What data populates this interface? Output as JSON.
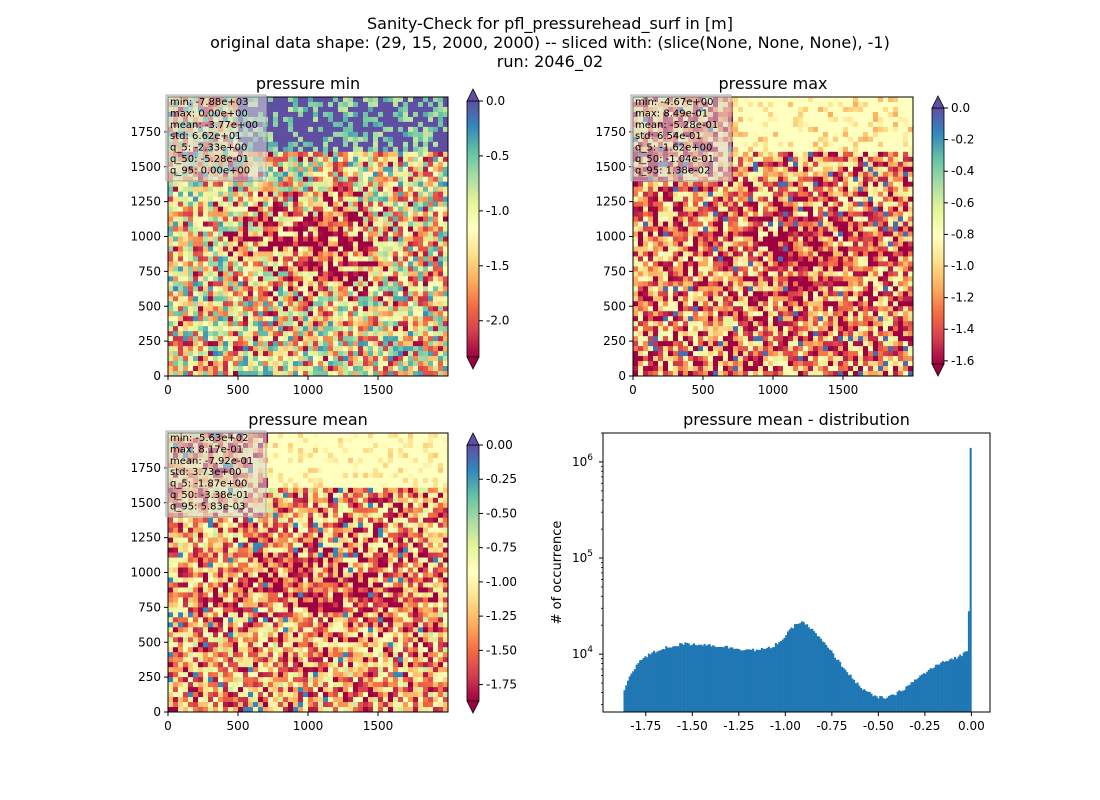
{
  "figure": {
    "title_lines": [
      "Sanity-Check for pfl_pressurehead_surf in [m]",
      "original data shape: (29, 15, 2000, 2000) -- sliced with: (slice(None, None, None), -1)",
      "run: 2046_02"
    ]
  },
  "colormap": "Spectral",
  "chart_data": [
    {
      "type": "heatmap",
      "title": "pressure min",
      "xticks": [
        0,
        500,
        1000,
        1500
      ],
      "yticks": [
        0,
        250,
        500,
        750,
        1000,
        1250,
        1500,
        1750
      ],
      "xlim": [
        0,
        2000
      ],
      "ylim": [
        0,
        2000
      ],
      "colorbar": {
        "ticks": [
          "0.0",
          "-0.5",
          "-1.0",
          "-1.5",
          "-2.0"
        ],
        "range": [
          -2.33,
          0.0
        ],
        "extend": "both"
      },
      "stats": [
        "min: -7.88e+03",
        "max: 0.00e+00",
        "mean: -3.77e+00",
        "std: 6.62e+01",
        "q_5: -2.33e+00",
        "q_50: -5.28e-01",
        "q_95: 0.00e+00"
      ]
    },
    {
      "type": "heatmap",
      "title": "pressure max",
      "xticks": [
        0,
        500,
        1000,
        1500
      ],
      "yticks": [
        0,
        250,
        500,
        750,
        1000,
        1250,
        1500,
        1750
      ],
      "xlim": [
        0,
        2000
      ],
      "ylim": [
        0,
        2000
      ],
      "colorbar": {
        "ticks": [
          "0.0",
          "-0.2",
          "-0.4",
          "-0.6",
          "-0.8",
          "-1.0",
          "-1.2",
          "-1.4",
          "-1.6"
        ],
        "range": [
          -1.62,
          0.0
        ],
        "extend": "both"
      },
      "stats": [
        "min: -4.67e+00",
        "max: 8.49e-01",
        "mean: -5.28e-01",
        "std: 6.54e-01",
        "q_5: -1.62e+00",
        "q_50: -1.04e-01",
        "q_95: 1.38e-02"
      ]
    },
    {
      "type": "heatmap",
      "title": "pressure mean",
      "xticks": [
        0,
        500,
        1000,
        1500
      ],
      "yticks": [
        0,
        250,
        500,
        750,
        1000,
        1250,
        1500,
        1750
      ],
      "xlim": [
        0,
        2000
      ],
      "ylim": [
        0,
        2000
      ],
      "colorbar": {
        "ticks": [
          "0.00",
          "-0.25",
          "-0.50",
          "-0.75",
          "-1.00",
          "-1.25",
          "-1.50",
          "-1.75"
        ],
        "range": [
          -1.87,
          0.0
        ],
        "extend": "both"
      },
      "stats": [
        "min: -5.63e+02",
        "max: 8.17e-01",
        "mean: -7.92e-01",
        "std: 3.73e+00",
        "q_5: -1.87e+00",
        "q_50: -3.38e-01",
        "q_95: 5.83e-03"
      ]
    },
    {
      "type": "bar",
      "title": "pressure mean - distribution",
      "ylabel": "# of occurrence",
      "yscale": "log",
      "ylim": [
        2500,
        2000000
      ],
      "xlim": [
        -1.98,
        0.1
      ],
      "xticks": [
        "-1.75",
        "-1.50",
        "-1.25",
        "-1.00",
        "-0.75",
        "-0.50",
        "-0.25",
        "0.00"
      ],
      "xtick_values": [
        -1.75,
        -1.5,
        -1.25,
        -1.0,
        -0.75,
        -0.5,
        -0.25,
        0.0
      ],
      "ytick_values": [
        10000,
        100000,
        1000000
      ],
      "bins": [
        -1.87,
        0.0
      ],
      "color": "#1f77b4",
      "profile": [
        [
          -1.87,
          3900
        ],
        [
          -1.85,
          5200
        ],
        [
          -1.82,
          6800
        ],
        [
          -1.78,
          8600
        ],
        [
          -1.72,
          10200
        ],
        [
          -1.65,
          11600
        ],
        [
          -1.55,
          12800
        ],
        [
          -1.45,
          12700
        ],
        [
          -1.35,
          12100
        ],
        [
          -1.25,
          11400
        ],
        [
          -1.15,
          11000
        ],
        [
          -1.08,
          11600
        ],
        [
          -1.02,
          14000
        ],
        [
          -0.96,
          19000
        ],
        [
          -0.92,
          22000
        ],
        [
          -0.88,
          20000
        ],
        [
          -0.82,
          15000
        ],
        [
          -0.76,
          11000
        ],
        [
          -0.7,
          7800
        ],
        [
          -0.64,
          5600
        ],
        [
          -0.58,
          4300
        ],
        [
          -0.52,
          3600
        ],
        [
          -0.47,
          3500
        ],
        [
          -0.42,
          3700
        ],
        [
          -0.36,
          4400
        ],
        [
          -0.3,
          5400
        ],
        [
          -0.25,
          6400
        ],
        [
          -0.18,
          7800
        ],
        [
          -0.1,
          9000
        ],
        [
          -0.05,
          9800
        ],
        [
          -0.02,
          11000
        ],
        [
          -0.01,
          16000
        ],
        [
          0.0,
          1400000
        ]
      ]
    }
  ]
}
